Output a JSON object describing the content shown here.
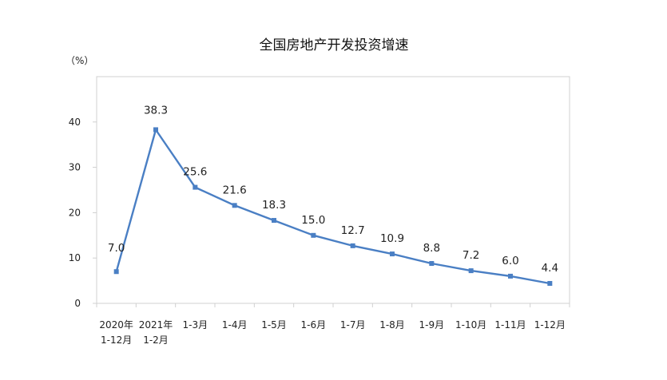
{
  "chart_data": {
    "type": "line",
    "title": "全国房地产开发投资增速",
    "ylabel": "（%）",
    "xlabel": "",
    "ylim": [
      0,
      50
    ],
    "yticks": [
      0,
      10,
      20,
      30,
      40
    ],
    "grid": false,
    "legend": "none",
    "line_color": "#4a7fc4",
    "categories": [
      [
        "2020年",
        "1-12月"
      ],
      [
        "2021年",
        "1-2月"
      ],
      [
        "1-3月"
      ],
      [
        "1-4月"
      ],
      [
        "1-5月"
      ],
      [
        "1-6月"
      ],
      [
        "1-7月"
      ],
      [
        "1-8月"
      ],
      [
        "1-9月"
      ],
      [
        "1-10月"
      ],
      [
        "1-11月"
      ],
      [
        "1-12月"
      ]
    ],
    "series": [
      {
        "values": [
          7.0,
          38.3,
          25.6,
          21.6,
          18.3,
          15.0,
          12.7,
          10.9,
          8.8,
          7.2,
          6.0,
          4.4
        ],
        "labels": [
          "7.0",
          "38.3",
          "25.6",
          "21.6",
          "18.3",
          "15.0",
          "12.7",
          "10.9",
          "8.8",
          "7.2",
          "6.0",
          "4.4"
        ]
      }
    ]
  }
}
